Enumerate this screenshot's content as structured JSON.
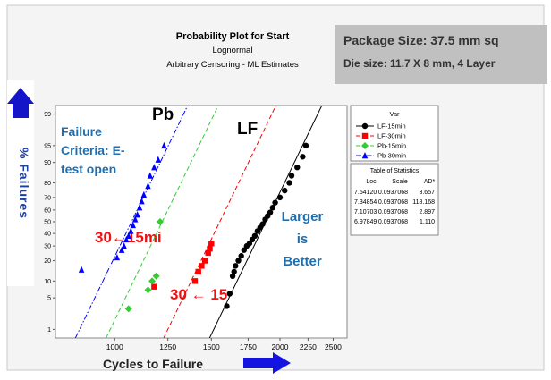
{
  "chart_data": {
    "type": "scatter",
    "title": "Probability Plot for Start",
    "subtitle": [
      "Lognormal",
      "Arbitrary Censoring - ML Estimates"
    ],
    "info_box": [
      "Package Size: 37.5 mm sq",
      "Die size: 11.7 X 8 mm, 4 Layer"
    ],
    "x_label": "Cycles to Failure",
    "y_label": "% Failures",
    "log_x": true,
    "y_scale": "normal-probability",
    "xlim": [
      780,
      2650
    ],
    "xticks": [
      1000,
      1250,
      1500,
      1750,
      2000,
      2250,
      2500
    ],
    "ylim": [
      0.6,
      99.4
    ],
    "yticks": [
      1,
      5,
      10,
      20,
      30,
      40,
      50,
      60,
      70,
      80,
      90,
      95,
      99
    ],
    "legend_title": "Var",
    "series": [
      {
        "name": "LF-15min",
        "color": "#000000",
        "marker": "circle",
        "line_style": "solid",
        "x": [
          1600,
          1620,
          1640,
          1650,
          1660,
          1680,
          1700,
          1720,
          1740,
          1760,
          1780,
          1800,
          1820,
          1840,
          1860,
          1880,
          1900,
          1920,
          1940,
          1960,
          2000,
          2040,
          2080,
          2100,
          2150,
          2200,
          2230
        ],
        "values": [
          3.4,
          6,
          12,
          14,
          17,
          20,
          23,
          27,
          30,
          32,
          35,
          38,
          42,
          45,
          48,
          52,
          55,
          58,
          62,
          66,
          70,
          75,
          80,
          84,
          88,
          92,
          95
        ]
      },
      {
        "name": "LF-30min",
        "color": "#ff0000",
        "marker": "square",
        "line_style": "dashed",
        "x": [
          1180,
          1400,
          1420,
          1440,
          1460,
          1480,
          1490,
          1500
        ],
        "values": [
          8,
          10,
          14,
          17,
          20,
          25,
          28,
          32
        ]
      },
      {
        "name": "Pb-15min",
        "color": "#33cc33",
        "marker": "diamond",
        "line_style": "dashed",
        "x": [
          1060,
          1150,
          1170,
          1190,
          1210
        ],
        "values": [
          3,
          7,
          10,
          12,
          50
        ]
      },
      {
        "name": "Pb-30min",
        "color": "#0000ff",
        "marker": "triangle",
        "line_style": "dashdot",
        "x": [
          870,
          1010,
          1030,
          1040,
          1050,
          1060,
          1070,
          1080,
          1090,
          1100,
          1110,
          1120,
          1130,
          1150,
          1160,
          1180,
          1200,
          1230
        ],
        "values": [
          15,
          22,
          27,
          30,
          35,
          38,
          42,
          47,
          52,
          56,
          62,
          67,
          72,
          78,
          84,
          88,
          91,
          95
        ]
      }
    ],
    "statistics": {
      "title": "Table of Statistics",
      "columns": [
        "Loc",
        "Scale",
        "AD*"
      ],
      "rows": [
        [
          {
            "value": 7.5412,
            "label": "7.54120"
          },
          0.0937068,
          3.657
        ],
        [
          7.34854,
          0.0937068,
          118.168
        ],
        [
          7.10703,
          0.0937068,
          2.897
        ],
        [
          6.97849,
          0.0937068,
          {
            "value": 1.11,
            "label": "1.110"
          }
        ]
      ]
    },
    "annotations": [
      "Pb",
      "LF",
      "Failure",
      "Criteria: E-",
      "test open",
      "30←15mi",
      "30 ← 15",
      "Larger",
      "is",
      "Better"
    ]
  }
}
